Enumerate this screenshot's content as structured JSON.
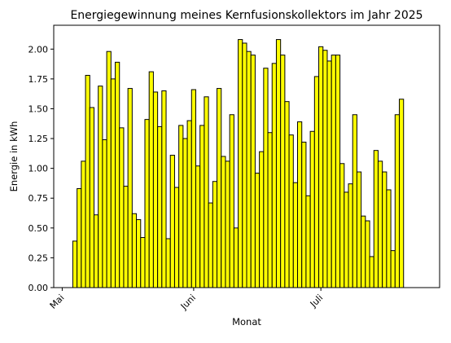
{
  "chart_data": {
    "type": "bar",
    "title": "Energiegewinnung meines Kernfusionskollektors im Jahr 2025",
    "xlabel": "Monat",
    "ylabel": "Energie in kWh",
    "ylim": [
      0,
      2.2
    ],
    "yticks": [
      0.0,
      0.25,
      0.5,
      0.75,
      1.0,
      1.25,
      1.5,
      1.75,
      2.0
    ],
    "ytick_labels": [
      "0.00",
      "0.25",
      "0.50",
      "0.75",
      "1.00",
      "1.25",
      "1.50",
      "1.75",
      "2.00"
    ],
    "x_start": "2025-05-04",
    "x_range": [
      "2025-04-29",
      "2025-07-29"
    ],
    "xticks": [
      {
        "date": "2025-05-01",
        "label": "Mai"
      },
      {
        "date": "2025-06-01",
        "label": "Juni"
      },
      {
        "date": "2025-07-01",
        "label": "Juli"
      }
    ],
    "bar_color": "#ffff00",
    "edge_color": "#000000",
    "grid": false,
    "values": [
      0.39,
      0.83,
      1.06,
      1.78,
      1.51,
      0.61,
      1.69,
      1.24,
      1.98,
      1.75,
      1.89,
      1.34,
      0.85,
      1.67,
      0.62,
      0.57,
      0.42,
      1.41,
      1.81,
      1.64,
      1.35,
      1.65,
      0.41,
      1.11,
      0.84,
      1.36,
      1.25,
      1.4,
      1.66,
      1.02,
      1.36,
      1.6,
      0.71,
      0.89,
      1.67,
      1.1,
      1.06,
      1.45,
      0.5,
      2.08,
      2.05,
      1.98,
      1.95,
      0.96,
      1.14,
      1.84,
      1.3,
      1.88,
      2.08,
      1.95,
      1.56,
      1.28,
      0.88,
      1.39,
      1.22,
      0.77,
      1.31,
      1.77,
      2.02,
      1.99,
      1.9,
      1.95,
      1.95,
      1.04,
      0.8,
      0.87,
      1.45,
      0.97,
      0.6,
      0.56,
      0.26,
      1.15,
      1.06,
      0.97,
      0.82,
      0.31,
      1.45,
      1.58
    ]
  }
}
